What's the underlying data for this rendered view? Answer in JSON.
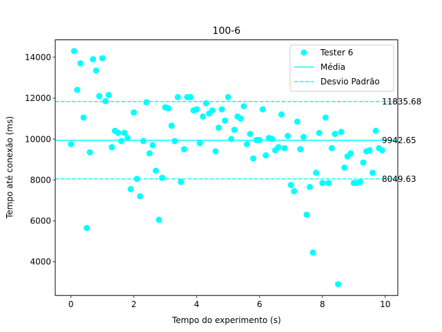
{
  "chart_data": {
    "type": "scatter",
    "title": "100-6",
    "xlabel": "Tempo do experimento (s)",
    "ylabel": "Tempo até conexão (ms)",
    "xlim": [
      -0.5,
      10.4
    ],
    "ylim": [
      2350,
      14850
    ],
    "xticks": [
      0,
      2,
      4,
      6,
      8,
      10
    ],
    "yticks": [
      4000,
      6000,
      8000,
      10000,
      12000,
      14000
    ],
    "grid": false,
    "legend_position": "top-right",
    "colors": {
      "series": "#00ffff",
      "axes": "#000000",
      "background": "#ffffff"
    },
    "legend": [
      "Tester 6",
      "Média",
      "Desvio Padrão"
    ],
    "series": [
      {
        "name": "Tester 6",
        "x": [
          0.0,
          0.1,
          0.2,
          0.3,
          0.4,
          0.5,
          0.6,
          0.7,
          0.8,
          0.9,
          1.0,
          1.1,
          1.2,
          1.3,
          1.4,
          1.5,
          1.6,
          1.7,
          1.8,
          1.9,
          2.0,
          2.1,
          2.2,
          2.3,
          2.4,
          2.5,
          2.6,
          2.7,
          2.8,
          2.9,
          3.0,
          3.1,
          3.2,
          3.3,
          3.4,
          3.5,
          3.6,
          3.7,
          3.8,
          3.9,
          4.0,
          4.1,
          4.2,
          4.3,
          4.4,
          4.5,
          4.6,
          4.7,
          4.8,
          4.9,
          5.0,
          5.1,
          5.2,
          5.3,
          5.4,
          5.5,
          5.6,
          5.7,
          5.8,
          5.9,
          6.0,
          6.1,
          6.2,
          6.3,
          6.4,
          6.5,
          6.6,
          6.7,
          6.8,
          6.9,
          7.0,
          7.1,
          7.2,
          7.3,
          7.4,
          7.5,
          7.6,
          7.7,
          7.8,
          7.9,
          8.0,
          8.1,
          8.2,
          8.3,
          8.4,
          8.5,
          8.6,
          8.7,
          8.8,
          8.9,
          9.0,
          9.1,
          9.2,
          9.3,
          9.4,
          9.5,
          9.6,
          9.7,
          9.8,
          9.9
        ],
        "y": [
          9750,
          14300,
          12400,
          13700,
          11050,
          5650,
          9350,
          13900,
          13350,
          12100,
          13950,
          11850,
          12150,
          9600,
          10400,
          10300,
          9900,
          10300,
          10050,
          7550,
          11300,
          8050,
          7200,
          9900,
          11800,
          9300,
          9700,
          8450,
          6050,
          8100,
          11550,
          11500,
          10650,
          9900,
          12050,
          7900,
          9500,
          12050,
          12050,
          11400,
          11450,
          9800,
          11100,
          11750,
          11250,
          11400,
          9400,
          10550,
          11450,
          10900,
          12050,
          10000,
          10450,
          11100,
          11000,
          11600,
          9750,
          10250,
          9050,
          9950,
          9950,
          11450,
          9200,
          10050,
          10000,
          9450,
          9600,
          11200,
          9550,
          10150,
          7750,
          7450,
          10850,
          9500,
          10100,
          6300,
          7650,
          4450,
          8350,
          10300,
          7850,
          11050,
          7850,
          9550,
          10250,
          2900,
          10350,
          8600,
          9150,
          9300,
          7850,
          7850,
          7900,
          8850,
          9400,
          9450,
          8350,
          10400,
          9550,
          9450
        ]
      }
    ],
    "reference_lines": [
      {
        "name": "Média",
        "y": 9942.65,
        "style": "solid",
        "label": "9942.65"
      },
      {
        "name": "Desvio Padrão",
        "y": 11835.68,
        "style": "dashed",
        "label": "11835.68"
      },
      {
        "name": "Desvio Padrão",
        "y": 8049.63,
        "style": "dashed",
        "label": "8049.63"
      }
    ]
  }
}
